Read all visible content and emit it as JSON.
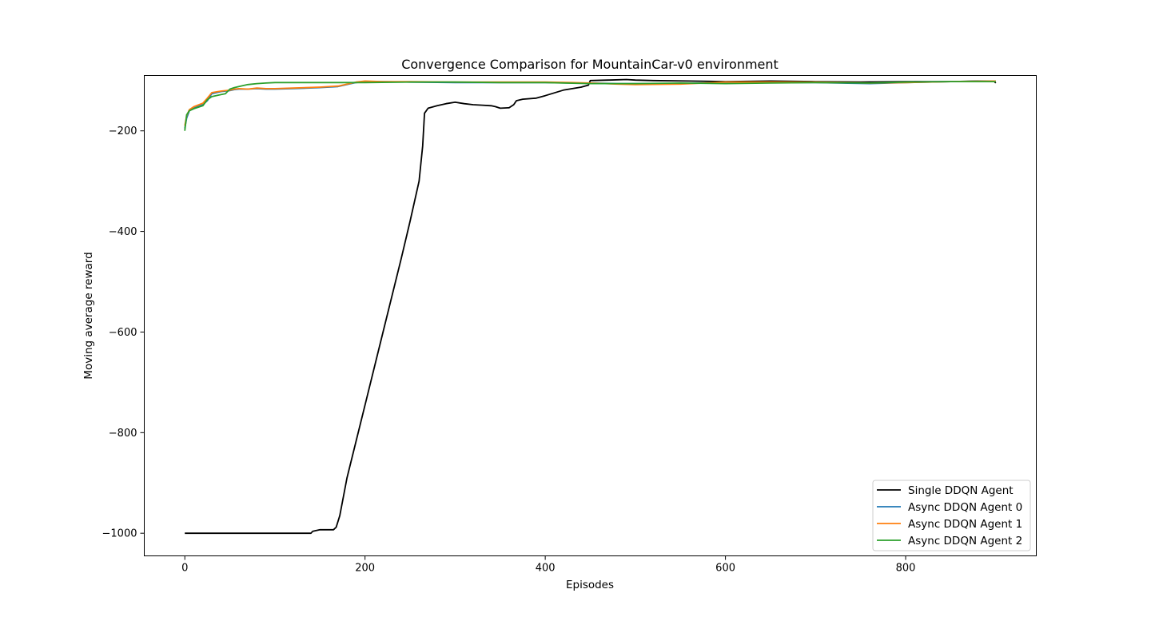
{
  "chart_data": {
    "type": "line",
    "title": "Convergence Comparison for MountainCar-v0 environment",
    "xlabel": "Episodes",
    "ylabel": "Moving average reward",
    "xlim": [
      -45,
      945
    ],
    "ylim": [
      -1045,
      -90
    ],
    "xticks": [
      0,
      200,
      400,
      600,
      800
    ],
    "yticks": [
      -1000,
      -800,
      -600,
      -400,
      -200
    ],
    "xtick_labels": [
      "0",
      "200",
      "400",
      "600",
      "800"
    ],
    "ytick_labels": [
      "−1000",
      "−800",
      "−600",
      "−400",
      "−200"
    ],
    "grid": false,
    "legend_position": "lower-right",
    "series": [
      {
        "name": "Single DDQN Agent",
        "color": "#000000",
        "x": [
          0,
          140,
          142,
          150,
          165,
          168,
          172,
          180,
          200,
          220,
          240,
          250,
          260,
          264,
          266,
          270,
          280,
          290,
          300,
          310,
          320,
          330,
          340,
          345,
          350,
          360,
          365,
          368,
          375,
          390,
          400,
          420,
          440,
          448,
          450,
          470,
          490,
          500,
          520,
          560,
          600,
          650,
          700,
          750,
          800,
          850,
          880,
          898,
          900
        ],
        "y": [
          -1000,
          -1000,
          -996,
          -993,
          -993,
          -988,
          -965,
          -890,
          -745,
          -600,
          -455,
          -380,
          -300,
          -230,
          -165,
          -155,
          -150,
          -146,
          -143,
          -146,
          -148,
          -149,
          -150,
          -152,
          -155,
          -154,
          -148,
          -140,
          -137,
          -135,
          -130,
          -119,
          -113,
          -109,
          -100,
          -99,
          -98,
          -99,
          -100,
          -101,
          -102,
          -101,
          -102,
          -103,
          -102,
          -102,
          -101,
          -101,
          -105
        ]
      },
      {
        "name": "Async DDQN Agent 0",
        "color": "#1f77b4",
        "x": [
          0,
          2,
          5,
          10,
          20,
          25,
          30,
          40,
          45,
          50,
          55,
          60,
          70,
          80,
          90,
          100,
          120,
          150,
          170,
          180,
          190,
          200,
          220,
          250,
          300,
          350,
          400,
          430,
          450,
          480,
          500,
          550,
          600,
          700,
          760,
          800,
          850,
          900
        ],
        "y": [
          -195,
          -175,
          -160,
          -155,
          -148,
          -140,
          -126,
          -122,
          -121,
          -120,
          -118,
          -117,
          -117,
          -116,
          -117,
          -117,
          -116,
          -114,
          -112,
          -108,
          -104,
          -102,
          -102,
          -103,
          -104,
          -104,
          -104,
          -105,
          -105,
          -106,
          -106,
          -106,
          -104,
          -104,
          -106,
          -104,
          -102,
          -101
        ]
      },
      {
        "name": "Async DDQN Agent 1",
        "color": "#ff7f0e",
        "x": [
          0,
          2,
          5,
          10,
          20,
          25,
          30,
          40,
          45,
          50,
          55,
          60,
          70,
          80,
          90,
          100,
          120,
          150,
          170,
          180,
          190,
          200,
          220,
          250,
          300,
          350,
          400,
          430,
          450,
          480,
          500,
          550,
          600,
          700,
          760,
          800,
          850,
          900
        ],
        "y": [
          -190,
          -170,
          -158,
          -152,
          -145,
          -135,
          -124,
          -121,
          -120,
          -119,
          -117,
          -116,
          -117,
          -115,
          -116,
          -116,
          -115,
          -113,
          -111,
          -107,
          -103,
          -101,
          -102,
          -102,
          -103,
          -103,
          -103,
          -104,
          -105,
          -107,
          -108,
          -107,
          -103,
          -103,
          -105,
          -104,
          -102,
          -101
        ]
      },
      {
        "name": "Async DDQN Agent 2",
        "color": "#2ca02c",
        "x": [
          0,
          2,
          5,
          10,
          20,
          25,
          30,
          40,
          45,
          50,
          55,
          60,
          70,
          80,
          90,
          100,
          120,
          150,
          170,
          180,
          190,
          200,
          250,
          300,
          350,
          400,
          450,
          500,
          550,
          600,
          650,
          700,
          760,
          800,
          850,
          900
        ],
        "y": [
          -200,
          -168,
          -160,
          -156,
          -150,
          -138,
          -132,
          -128,
          -126,
          -117,
          -114,
          -112,
          -108,
          -106,
          -105,
          -104,
          -104,
          -104,
          -104,
          -104,
          -104,
          -104,
          -103,
          -103,
          -104,
          -104,
          -106,
          -106,
          -105,
          -106,
          -105,
          -104,
          -105,
          -103,
          -102,
          -102
        ]
      }
    ]
  }
}
